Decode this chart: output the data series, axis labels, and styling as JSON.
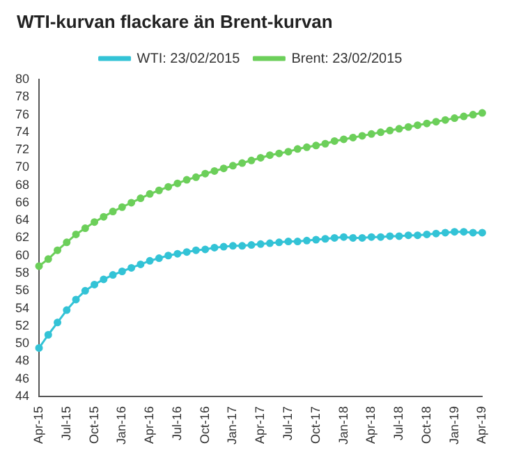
{
  "chart_data": {
    "type": "line",
    "title": "WTI-kurvan flackare än Brent-kurvan",
    "categories": [
      "Apr-15",
      null,
      null,
      "Jul-15",
      null,
      null,
      "Oct-15",
      null,
      null,
      "Jan-16",
      null,
      null,
      "Apr-16",
      null,
      null,
      "Jul-16",
      null,
      null,
      "Oct-16",
      null,
      null,
      "Jan-17",
      null,
      null,
      "Apr-17",
      null,
      null,
      "Jul-17",
      null,
      null,
      "Oct-17",
      null,
      null,
      "Jan-18",
      null,
      null,
      "Apr-18",
      null,
      null,
      "Jul-18",
      null,
      null,
      "Oct-18",
      null,
      null,
      "Jan-19",
      null,
      null,
      "Apr-19"
    ],
    "series": [
      {
        "name": "WTI: 23/02/2015",
        "color": "#33c3d6",
        "values": [
          49.5,
          51,
          52.4,
          53.8,
          55,
          56,
          56.7,
          57.3,
          57.8,
          58.2,
          58.6,
          59,
          59.4,
          59.7,
          60,
          60.2,
          60.4,
          60.6,
          60.7,
          60.9,
          61,
          61.1,
          61.1,
          61.2,
          61.3,
          61.4,
          61.5,
          61.6,
          61.6,
          61.7,
          61.8,
          61.9,
          62,
          62.1,
          62,
          62,
          62.1,
          62.1,
          62.2,
          62.2,
          62.3,
          62.3,
          62.4,
          62.5,
          62.6,
          62.7,
          62.7,
          62.6,
          62.6
        ]
      },
      {
        "name": "Brent: 23/02/2015",
        "color": "#6ccf5a",
        "values": [
          58.8,
          59.6,
          60.6,
          61.5,
          62.4,
          63.1,
          63.8,
          64.4,
          65,
          65.5,
          66,
          66.5,
          67,
          67.4,
          67.8,
          68.2,
          68.6,
          68.9,
          69.3,
          69.6,
          69.9,
          70.2,
          70.5,
          70.8,
          71.1,
          71.4,
          71.6,
          71.8,
          72.1,
          72.3,
          72.5,
          72.7,
          73,
          73.2,
          73.4,
          73.6,
          73.8,
          74,
          74.2,
          74.4,
          74.6,
          74.8,
          75,
          75.2,
          75.4,
          75.6,
          75.8,
          76,
          76.2
        ]
      }
    ],
    "ylim": [
      44,
      80
    ],
    "yticks": [
      44,
      46,
      48,
      50,
      52,
      54,
      56,
      58,
      60,
      62,
      64,
      66,
      68,
      70,
      72,
      74,
      76,
      78,
      80
    ],
    "grid": false,
    "legend": "top",
    "marker": "circle",
    "line_style": "solid"
  }
}
